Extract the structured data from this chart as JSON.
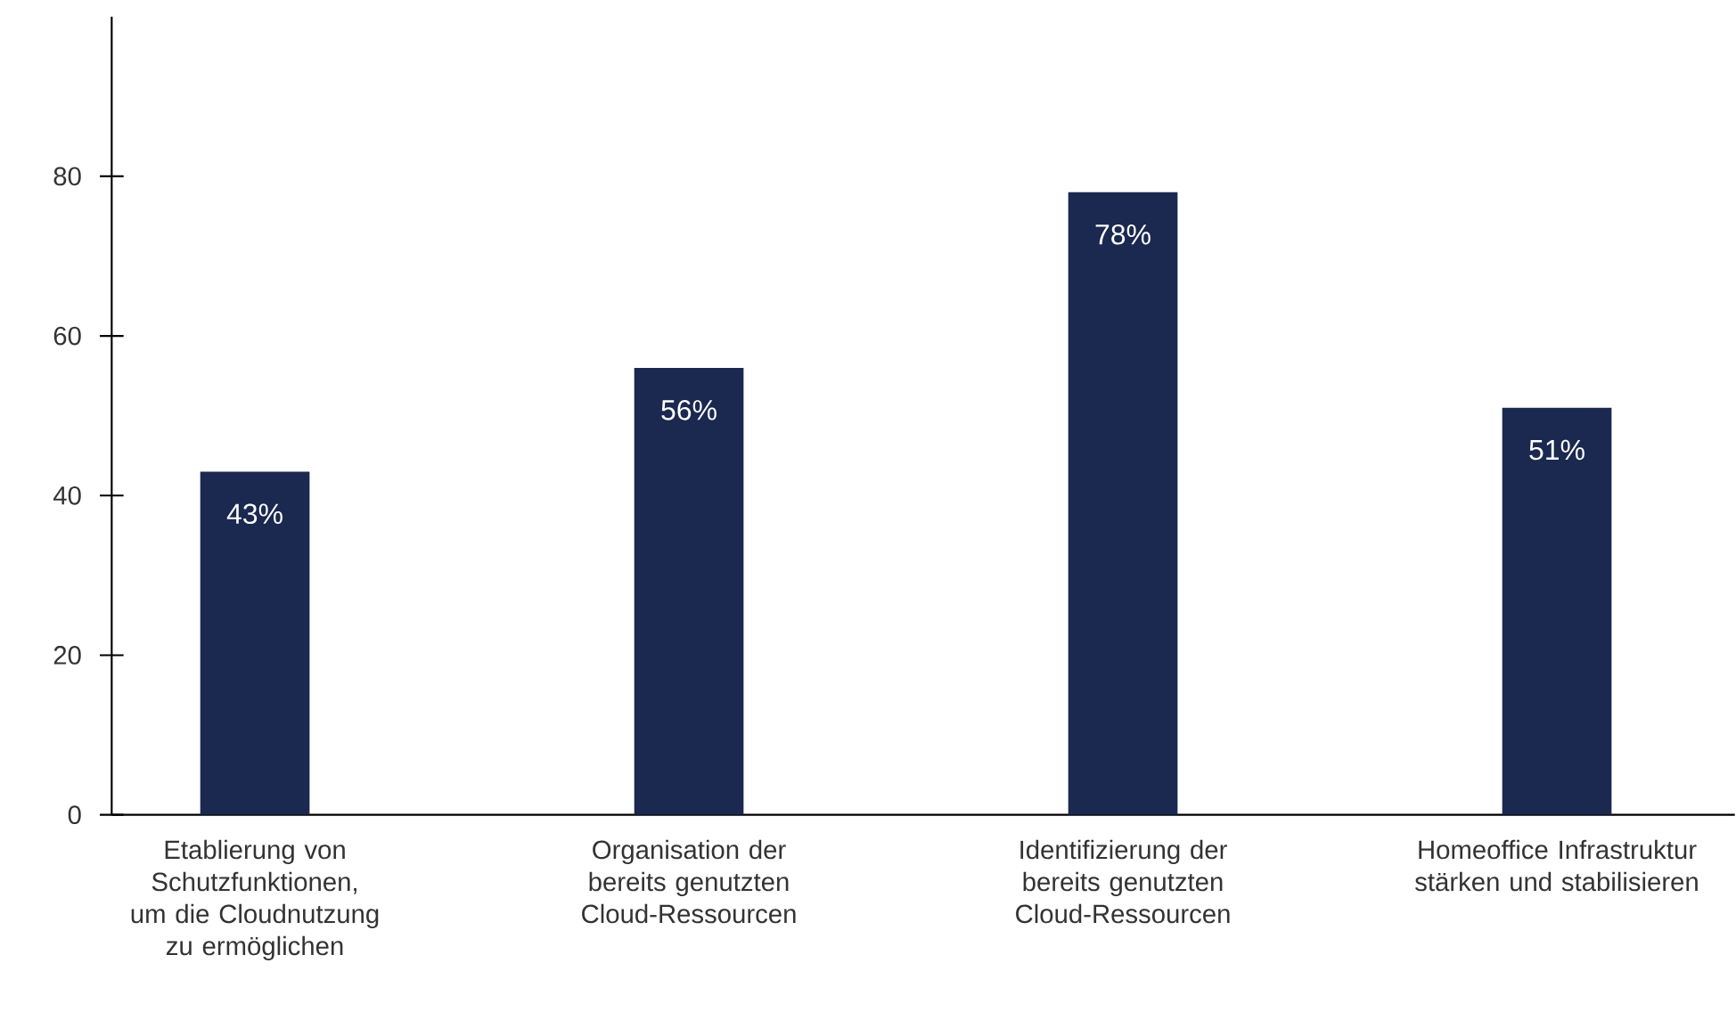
{
  "chart_data": {
    "type": "bar",
    "categories": [
      "Etablierung von Schutzfunktionen, um die Cloudnutzung zu ermöglichen",
      "Organisation der bereits genutzten Cloud-Ressourcen",
      "Identifizierung der bereits genutzten Cloud-Ressourcen",
      "Homeoffice Infrastruktur stärken und stabilisieren"
    ],
    "values": [
      43,
      56,
      78,
      51
    ],
    "value_labels": [
      "43%",
      "56%",
      "78%",
      "51%"
    ],
    "color": "#1b2850",
    "ylim": [
      0,
      100
    ],
    "yticks": [
      0,
      20,
      40,
      60,
      80
    ],
    "grid": false,
    "legend": false
  }
}
